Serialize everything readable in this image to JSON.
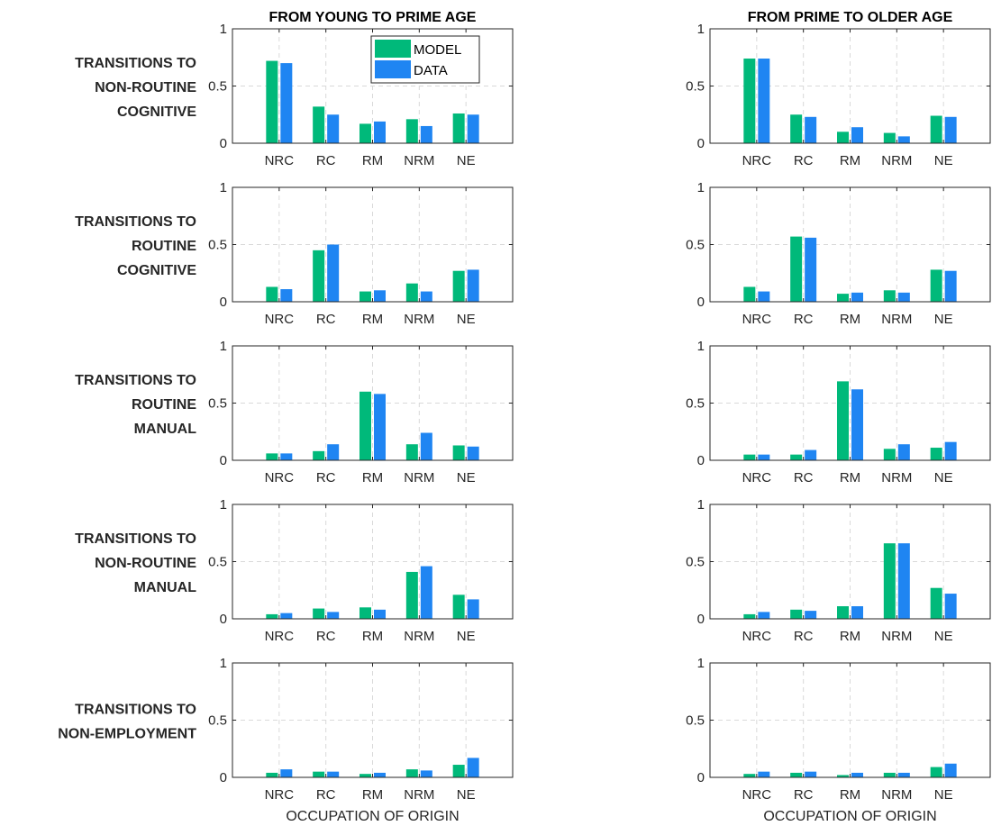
{
  "chart_data": {
    "type": "bar",
    "columns": [
      {
        "title": "FROM YOUNG TO PRIME AGE"
      },
      {
        "title": "FROM PRIME TO OLDER AGE"
      }
    ],
    "rows": [
      {
        "label_lines": [
          "TRANSITIONS TO",
          "NON-ROUTINE",
          "COGNITIVE"
        ]
      },
      {
        "label_lines": [
          "TRANSITIONS TO",
          "ROUTINE",
          "COGNITIVE"
        ]
      },
      {
        "label_lines": [
          "TRANSITIONS TO",
          "ROUTINE",
          "MANUAL"
        ]
      },
      {
        "label_lines": [
          "TRANSITIONS TO",
          "NON-ROUTINE",
          "MANUAL"
        ]
      },
      {
        "label_lines": [
          "TRANSITIONS TO",
          "NON-EMPLOYMENT"
        ]
      }
    ],
    "categories": [
      "NRC",
      "RC",
      "RM",
      "NRM",
      "NE"
    ],
    "xlabel": "OCCUPATION OF ORIGIN",
    "ylim": [
      0,
      1
    ],
    "yticks": [
      0,
      0.5,
      1
    ],
    "ytick_labels": [
      "0",
      "0.5",
      "1"
    ],
    "grid": true,
    "legend": {
      "placement": "top-right",
      "panel": "row 1, column 1"
    },
    "series_names": [
      "MODEL",
      "DATA"
    ],
    "series_colors": [
      "#00b97a",
      "#1f85f2"
    ],
    "panels": [
      [
        {
          "series": [
            {
              "name": "MODEL",
              "values": [
                0.72,
                0.32,
                0.17,
                0.21,
                0.26
              ]
            },
            {
              "name": "DATA",
              "values": [
                0.7,
                0.25,
                0.19,
                0.15,
                0.25
              ]
            }
          ]
        },
        {
          "series": [
            {
              "name": "MODEL",
              "values": [
                0.74,
                0.25,
                0.1,
                0.09,
                0.24
              ]
            },
            {
              "name": "DATA",
              "values": [
                0.74,
                0.23,
                0.14,
                0.06,
                0.23
              ]
            }
          ]
        }
      ],
      [
        {
          "series": [
            {
              "name": "MODEL",
              "values": [
                0.13,
                0.45,
                0.09,
                0.16,
                0.27
              ]
            },
            {
              "name": "DATA",
              "values": [
                0.11,
                0.5,
                0.1,
                0.09,
                0.28
              ]
            }
          ]
        },
        {
          "series": [
            {
              "name": "MODEL",
              "values": [
                0.13,
                0.57,
                0.07,
                0.1,
                0.28
              ]
            },
            {
              "name": "DATA",
              "values": [
                0.09,
                0.56,
                0.08,
                0.08,
                0.27
              ]
            }
          ]
        }
      ],
      [
        {
          "series": [
            {
              "name": "MODEL",
              "values": [
                0.06,
                0.08,
                0.6,
                0.14,
                0.13
              ]
            },
            {
              "name": "DATA",
              "values": [
                0.06,
                0.14,
                0.58,
                0.24,
                0.12
              ]
            }
          ]
        },
        {
          "series": [
            {
              "name": "MODEL",
              "values": [
                0.05,
                0.05,
                0.69,
                0.1,
                0.11
              ]
            },
            {
              "name": "DATA",
              "values": [
                0.05,
                0.09,
                0.62,
                0.14,
                0.16
              ]
            }
          ]
        }
      ],
      [
        {
          "series": [
            {
              "name": "MODEL",
              "values": [
                0.04,
                0.09,
                0.1,
                0.41,
                0.21
              ]
            },
            {
              "name": "DATA",
              "values": [
                0.05,
                0.06,
                0.08,
                0.46,
                0.17
              ]
            }
          ]
        },
        {
          "series": [
            {
              "name": "MODEL",
              "values": [
                0.04,
                0.08,
                0.11,
                0.66,
                0.27
              ]
            },
            {
              "name": "DATA",
              "values": [
                0.06,
                0.07,
                0.11,
                0.66,
                0.22
              ]
            }
          ]
        }
      ],
      [
        {
          "series": [
            {
              "name": "MODEL",
              "values": [
                0.04,
                0.05,
                0.03,
                0.07,
                0.11
              ]
            },
            {
              "name": "DATA",
              "values": [
                0.07,
                0.05,
                0.04,
                0.06,
                0.17
              ]
            }
          ]
        },
        {
          "series": [
            {
              "name": "MODEL",
              "values": [
                0.03,
                0.04,
                0.02,
                0.04,
                0.09
              ]
            },
            {
              "name": "DATA",
              "values": [
                0.05,
                0.05,
                0.04,
                0.04,
                0.12
              ]
            }
          ]
        }
      ]
    ]
  }
}
